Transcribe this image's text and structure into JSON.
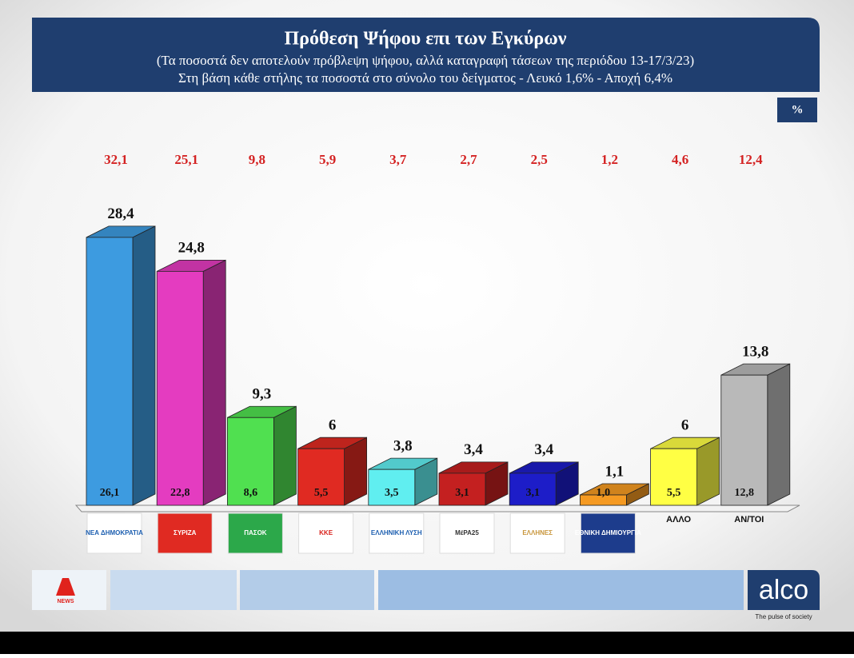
{
  "chart_data": {
    "type": "bar3d",
    "title": "Πρόθεση Ψήφου επι των Εγκύρων",
    "subtitle": "(Τα ποσοστά δεν αποτελούν πρόβλεψη ψήφου, αλλά καταγραφή τάσεων της περιόδου  13-17/3/23)",
    "note": "Στη βάση κάθε στήλης τα ποσοστά στο σύνολο του δείγματος - Λευκό 1,6% - Αποχή 6,4%",
    "unit_label": "%",
    "categories": [
      "ΝΕΑ ΔΗΜΟΚΡΑΤΙΑ",
      "ΣΥΡΙΖΑ",
      "ΠΑΣΟΚ",
      "ΚΚΕ",
      "ΕΛΛΗΝΙΚΗ ΛΥΣΗ",
      "ΜέΡΑ25",
      "ΕΛΛΗΝΕΣ",
      "ΕΘΝΙΚΗ ΔΗΜΙΟΥΡΓΙΑ",
      "ΑΛΛΟ",
      "ΑΝ/ΤΟΙ"
    ],
    "values": [
      28.4,
      24.8,
      9.3,
      6,
      3.8,
      3.4,
      3.4,
      1.1,
      6,
      13.8
    ],
    "value_labels": [
      "28,4",
      "24,8",
      "9,3",
      "6",
      "3,8",
      "3,4",
      "3,4",
      "1,1",
      "6",
      "13,8"
    ],
    "base_values": [
      26.1,
      22.8,
      8.6,
      5.5,
      3.5,
      3.1,
      3.1,
      1.0,
      5.5,
      12.8
    ],
    "base_value_labels": [
      "26,1",
      "22,8",
      "8,6",
      "5,5",
      "3,5",
      "3,1",
      "3,1",
      "1,0",
      "5,5",
      "12,8"
    ],
    "top_values": [
      32.1,
      25.1,
      9.8,
      5.9,
      3.7,
      2.7,
      2.5,
      1.2,
      4.6,
      12.4
    ],
    "top_value_labels": [
      "32,1",
      "25,1",
      "9,8",
      "5,9",
      "3,7",
      "2,7",
      "2,5",
      "1,2",
      "4,6",
      "12,4"
    ],
    "colors": [
      "#3d9be0",
      "#e43cc0",
      "#50e050",
      "#e02a22",
      "#60eef0",
      "#c42020",
      "#1d1dc8",
      "#f59a22",
      "#ffff44",
      "#b9b9b9"
    ],
    "ylim": [
      0,
      30
    ]
  },
  "branding": {
    "channel": "NEWS",
    "pollster": "alco",
    "tagline": "The pulse of society"
  }
}
